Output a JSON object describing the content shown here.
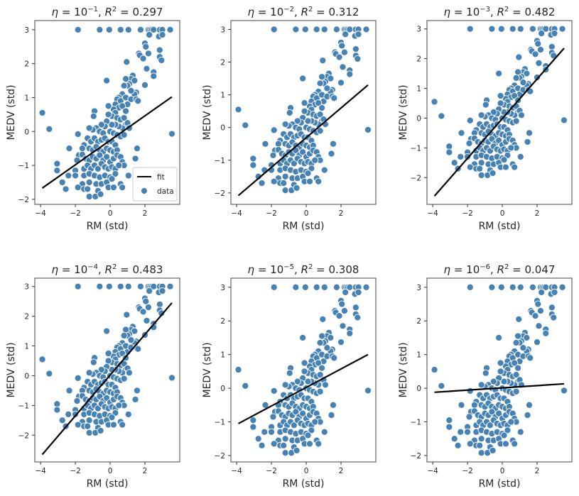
{
  "chart_data": {
    "type": "scatter",
    "layout": "2x3 grid",
    "xlabel": "RM (std)",
    "ylabel": "MEDV (std)",
    "xticks": [
      -4,
      -2,
      0,
      2
    ],
    "xlim": [
      -4.33,
      4.0
    ],
    "colors": {
      "data": "#4682b4",
      "fit": "#000000"
    },
    "legend": {
      "placement": "lower-right",
      "panel": 0,
      "entries": [
        "fit",
        "data"
      ]
    },
    "panels": [
      {
        "eta_base": "10",
        "eta_exp": "−1",
        "r2": "0.297",
        "ylim": [
          -2.15,
          3.27
        ],
        "yticks": [
          -2,
          -1,
          0,
          1,
          2,
          3
        ],
        "fit": {
          "x": [
            -3.9,
            3.55
          ],
          "y": [
            -1.67,
            1.02
          ]
        }
      },
      {
        "eta_base": "10",
        "eta_exp": "−2",
        "r2": "0.312",
        "ylim": [
          -2.35,
          3.27
        ],
        "yticks": [
          -2,
          -1,
          0,
          1,
          2,
          3
        ],
        "fit": {
          "x": [
            -3.9,
            3.55
          ],
          "y": [
            -2.08,
            1.3
          ]
        }
      },
      {
        "eta_base": "10",
        "eta_exp": "−3",
        "r2": "0.482",
        "ylim": [
          -2.9,
          3.28
        ],
        "yticks": [
          -2,
          -1,
          0,
          1,
          2,
          3
        ],
        "fit": {
          "x": [
            -3.9,
            3.55
          ],
          "y": [
            -2.62,
            2.35
          ]
        }
      },
      {
        "eta_base": "10",
        "eta_exp": "−4",
        "r2": "0.483",
        "ylim": [
          -2.9,
          3.28
        ],
        "yticks": [
          -2,
          -1,
          0,
          1,
          2,
          3
        ],
        "fit": {
          "x": [
            -3.9,
            3.55
          ],
          "y": [
            -2.65,
            2.45
          ]
        }
      },
      {
        "eta_base": "10",
        "eta_exp": "−5",
        "r2": "0.308",
        "ylim": [
          -2.19,
          3.27
        ],
        "yticks": [
          -2,
          -1,
          0,
          1,
          2,
          3
        ],
        "fit": {
          "x": [
            -3.9,
            3.55
          ],
          "y": [
            -1.05,
            1.0
          ]
        }
      },
      {
        "eta_base": "10",
        "eta_exp": "−6",
        "r2": "0.047",
        "ylim": [
          -2.19,
          3.27
        ],
        "yticks": [
          -2,
          -1,
          0,
          1,
          2,
          3
        ],
        "fit": {
          "x": [
            -3.9,
            3.55
          ],
          "y": [
            -0.12,
            0.13
          ]
        }
      }
    ],
    "points": [
      [
        -1.85,
        3
      ],
      [
        -0.6,
        3
      ],
      [
        -0.05,
        3
      ],
      [
        0.6,
        3
      ],
      [
        1.05,
        3
      ],
      [
        1.75,
        3
      ],
      [
        2.2,
        3
      ],
      [
        2.3,
        3
      ],
      [
        2.4,
        3
      ],
      [
        2.5,
        3
      ],
      [
        2.85,
        3
      ],
      [
        3.0,
        3
      ],
      [
        3.45,
        3
      ],
      [
        2.0,
        2.6
      ],
      [
        2.05,
        2.5
      ],
      [
        1.65,
        2.3
      ],
      [
        1.7,
        2.25
      ],
      [
        2.2,
        2.3
      ],
      [
        1.9,
        2.15
      ],
      [
        2.25,
        2.85
      ],
      [
        2.8,
        2.8
      ],
      [
        2.85,
        2.4
      ],
      [
        2.85,
        2.2
      ],
      [
        2.95,
        2.1
      ],
      [
        3.0,
        2.85
      ],
      [
        2.1,
        1.85
      ],
      [
        2.5,
        1.75
      ],
      [
        2.5,
        1.63
      ],
      [
        2.0,
        1.37
      ],
      [
        0.95,
        2.05
      ],
      [
        1.3,
        1.65
      ],
      [
        1.2,
        1.55
      ],
      [
        1.4,
        1.5
      ],
      [
        1.1,
        1.4
      ],
      [
        0.9,
        1.55
      ],
      [
        1.0,
        1.35
      ],
      [
        1.5,
        1.15
      ],
      [
        1.4,
        1.1
      ],
      [
        1.2,
        1.2
      ],
      [
        0.8,
        1.35
      ],
      [
        0.7,
        1.1
      ],
      [
        0.5,
        1.0
      ],
      [
        0.4,
        0.95
      ],
      [
        0.6,
        0.9
      ],
      [
        0.9,
        1.0
      ],
      [
        1.0,
        0.8
      ],
      [
        1.2,
        0.95
      ],
      [
        1.5,
        0.95
      ],
      [
        1.6,
        0.9
      ],
      [
        0.3,
        0.8
      ],
      [
        0.5,
        0.7
      ],
      [
        0.7,
        0.75
      ],
      [
        0.9,
        0.6
      ],
      [
        0.2,
        0.65
      ],
      [
        0.3,
        0.55
      ],
      [
        0.1,
        0.45
      ],
      [
        0.4,
        0.4
      ],
      [
        0.6,
        0.35
      ],
      [
        0.8,
        0.4
      ],
      [
        0.9,
        0.2
      ],
      [
        1.0,
        0.25
      ],
      [
        1.1,
        0.1
      ],
      [
        0.7,
        0.1
      ],
      [
        0.5,
        0.15
      ],
      [
        0.3,
        0.2
      ],
      [
        0.1,
        0.2
      ],
      [
        -0.1,
        0.5
      ],
      [
        -0.2,
        0.3
      ],
      [
        -0.3,
        0.15
      ],
      [
        -0.5,
        0.2
      ],
      [
        -0.8,
        0.1
      ],
      [
        -1.0,
        0.05
      ],
      [
        -1.2,
        0.1
      ],
      [
        -0.6,
        0.0
      ],
      [
        -0.4,
        -0.05
      ],
      [
        0.0,
        0.0
      ],
      [
        0.2,
        -0.05
      ],
      [
        0.4,
        -0.1
      ],
      [
        0.6,
        -0.15
      ],
      [
        0.8,
        -0.1
      ],
      [
        -0.2,
        1.5
      ],
      [
        -0.1,
        0.75
      ],
      [
        -0.9,
        0.6
      ],
      [
        -0.95,
        0.45
      ],
      [
        -3.9,
        0.55
      ],
      [
        -3.5,
        0.07
      ],
      [
        3.55,
        -0.07
      ],
      [
        -1.85,
        -0.08
      ],
      [
        -1.3,
        -0.2
      ],
      [
        -1.1,
        -0.3
      ],
      [
        -0.9,
        -0.2
      ],
      [
        -0.7,
        -0.3
      ],
      [
        -0.5,
        -0.25
      ],
      [
        -0.3,
        -0.2
      ],
      [
        -0.1,
        -0.3
      ],
      [
        0.1,
        -0.3
      ],
      [
        0.3,
        -0.4
      ],
      [
        -1.5,
        -0.4
      ],
      [
        -1.2,
        -0.5
      ],
      [
        -1.0,
        -0.55
      ],
      [
        -0.8,
        -0.45
      ],
      [
        -0.6,
        -0.55
      ],
      [
        -0.4,
        -0.6
      ],
      [
        -0.2,
        -0.5
      ],
      [
        0.0,
        -0.55
      ],
      [
        0.2,
        -0.6
      ],
      [
        0.4,
        -0.55
      ],
      [
        -1.6,
        -0.5
      ],
      [
        -2.35,
        -0.5
      ],
      [
        1.55,
        -0.5
      ],
      [
        1.45,
        -0.8
      ],
      [
        -1.8,
        -0.7
      ],
      [
        -1.6,
        -0.68
      ],
      [
        -1.9,
        -0.85
      ],
      [
        -1.4,
        -0.8
      ],
      [
        -1.2,
        -0.85
      ],
      [
        -1.0,
        -0.75
      ],
      [
        -0.8,
        -0.8
      ],
      [
        -0.6,
        -0.7
      ],
      [
        -0.4,
        -0.85
      ],
      [
        -0.2,
        -0.75
      ],
      [
        0.0,
        -0.9
      ],
      [
        0.2,
        -0.8
      ],
      [
        0.4,
        -0.7
      ],
      [
        0.6,
        -0.75
      ],
      [
        0.7,
        -0.9
      ],
      [
        0.8,
        -1.0
      ],
      [
        -3.05,
        -0.95
      ],
      [
        -3.05,
        -1.15
      ],
      [
        -2.0,
        -1.15
      ],
      [
        -1.5,
        -1.1
      ],
      [
        -1.3,
        -1.0
      ],
      [
        -1.1,
        -1.1
      ],
      [
        -0.9,
        -1.0
      ],
      [
        -0.7,
        -1.1
      ],
      [
        -0.5,
        -0.95
      ],
      [
        -0.3,
        -1.05
      ],
      [
        -0.1,
        -1.1
      ],
      [
        0.1,
        -1.05
      ],
      [
        0.3,
        -1.1
      ],
      [
        0.5,
        -1.0
      ],
      [
        -2.4,
        -1.3
      ],
      [
        -2.0,
        -1.3
      ],
      [
        -1.5,
        -1.3
      ],
      [
        -1.2,
        -1.25
      ],
      [
        -0.9,
        -1.3
      ],
      [
        -0.6,
        -1.35
      ],
      [
        -0.3,
        -1.3
      ],
      [
        0.0,
        -1.35
      ],
      [
        0.3,
        -1.25
      ],
      [
        1.05,
        -1.3
      ],
      [
        -2.75,
        -1.5
      ],
      [
        -1.6,
        -1.55
      ],
      [
        -1.2,
        -1.5
      ],
      [
        -0.8,
        -1.55
      ],
      [
        -0.5,
        -1.55
      ],
      [
        -0.2,
        -1.5
      ],
      [
        0.1,
        -1.4
      ],
      [
        0.6,
        -1.55
      ],
      [
        -2.55,
        -1.7
      ],
      [
        -1.85,
        -1.65
      ],
      [
        -1.5,
        -1.7
      ],
      [
        -1.3,
        -1.7
      ],
      [
        -0.7,
        -1.75
      ],
      [
        -0.1,
        -1.65
      ],
      [
        0.2,
        -1.65
      ],
      [
        0.7,
        -1.65
      ],
      [
        -1.2,
        -1.92
      ],
      [
        -0.85,
        -1.92
      ],
      [
        -0.55,
        -1.85
      ]
    ]
  }
}
